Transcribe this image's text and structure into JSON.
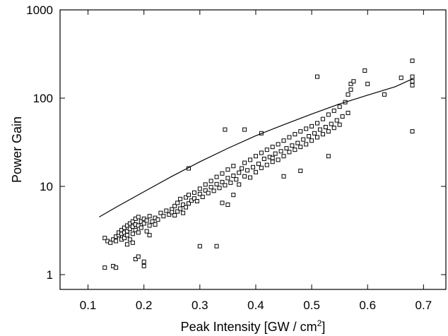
{
  "chart_data": {
    "type": "scatter",
    "title": "",
    "xlabel": "Peak Intensity [GW / cm",
    "xlabel_sup": "2",
    "xlabel_end": "]",
    "ylabel": "Power Gain",
    "x_ticks": [
      "0.1",
      "0.2",
      "0.3",
      "0.4",
      "0.5",
      "0.6",
      "0.7"
    ],
    "y_ticks": [
      "1",
      "10",
      "100",
      "1000"
    ],
    "xlim": [
      0.05,
      0.74
    ],
    "ylim": [
      0.68,
      1000
    ],
    "y_scale": "log",
    "grid": false,
    "legend": "none",
    "series": [
      {
        "type": "scatter",
        "marker": "open-square",
        "points": [
          [
            0.13,
            2.6
          ],
          [
            0.135,
            2.4
          ],
          [
            0.14,
            2.3
          ],
          [
            0.145,
            2.5
          ],
          [
            0.15,
            2.7
          ],
          [
            0.15,
            2.4
          ],
          [
            0.155,
            2.8
          ],
          [
            0.155,
            3.0
          ],
          [
            0.16,
            2.5
          ],
          [
            0.16,
            2.9
          ],
          [
            0.16,
            3.2
          ],
          [
            0.165,
            2.6
          ],
          [
            0.165,
            3.0
          ],
          [
            0.165,
            3.4
          ],
          [
            0.17,
            2.2
          ],
          [
            0.17,
            2.8
          ],
          [
            0.17,
            3.1
          ],
          [
            0.17,
            3.6
          ],
          [
            0.175,
            2.5
          ],
          [
            0.175,
            3.3
          ],
          [
            0.175,
            3.8
          ],
          [
            0.18,
            2.9
          ],
          [
            0.18,
            3.5
          ],
          [
            0.18,
            4.0
          ],
          [
            0.185,
            3.2
          ],
          [
            0.185,
            3.7
          ],
          [
            0.185,
            4.3
          ],
          [
            0.19,
            3.0
          ],
          [
            0.19,
            3.6
          ],
          [
            0.19,
            4.5
          ],
          [
            0.195,
            3.4
          ],
          [
            0.195,
            4.0
          ],
          [
            0.2,
            3.8
          ],
          [
            0.2,
            4.3
          ],
          [
            0.205,
            3.1
          ],
          [
            0.205,
            4.1
          ],
          [
            0.21,
            3.6
          ],
          [
            0.21,
            4.6
          ],
          [
            0.215,
            4.0
          ],
          [
            0.22,
            3.7
          ],
          [
            0.22,
            4.4
          ],
          [
            0.225,
            4.2
          ],
          [
            0.23,
            5.0
          ],
          [
            0.235,
            4.6
          ],
          [
            0.24,
            5.3
          ],
          [
            0.245,
            4.8
          ],
          [
            0.25,
            5.5
          ],
          [
            0.25,
            5.1
          ],
          [
            0.255,
            4.7
          ],
          [
            0.255,
            6.0
          ],
          [
            0.26,
            5.2
          ],
          [
            0.26,
            6.5
          ],
          [
            0.265,
            5.6
          ],
          [
            0.265,
            7.2
          ],
          [
            0.27,
            5.0
          ],
          [
            0.27,
            6.2
          ],
          [
            0.275,
            5.8
          ],
          [
            0.275,
            7.5
          ],
          [
            0.28,
            6.4
          ],
          [
            0.28,
            8.0
          ],
          [
            0.285,
            6.9
          ],
          [
            0.29,
            7.3
          ],
          [
            0.29,
            8.5
          ],
          [
            0.295,
            6.8
          ],
          [
            0.3,
            8.2
          ],
          [
            0.3,
            9.4
          ],
          [
            0.305,
            7.6
          ],
          [
            0.31,
            9.0
          ],
          [
            0.31,
            10.5
          ],
          [
            0.315,
            8.4
          ],
          [
            0.32,
            9.8
          ],
          [
            0.32,
            11.5
          ],
          [
            0.325,
            8.9
          ],
          [
            0.33,
            10.6
          ],
          [
            0.33,
            12.8
          ],
          [
            0.335,
            9.6
          ],
          [
            0.34,
            11.2
          ],
          [
            0.34,
            14.0
          ],
          [
            0.345,
            10.3
          ],
          [
            0.35,
            12.4
          ],
          [
            0.35,
            15.5
          ],
          [
            0.355,
            11.0
          ],
          [
            0.36,
            13.2
          ],
          [
            0.36,
            17.0
          ],
          [
            0.365,
            12.0
          ],
          [
            0.37,
            14.3
          ],
          [
            0.37,
            10.5
          ],
          [
            0.375,
            16.0
          ],
          [
            0.38,
            13.0
          ],
          [
            0.38,
            18.5
          ],
          [
            0.385,
            15.2
          ],
          [
            0.39,
            12.6
          ],
          [
            0.39,
            20.0
          ],
          [
            0.395,
            16.5
          ],
          [
            0.4,
            14.5
          ],
          [
            0.4,
            22.0
          ],
          [
            0.405,
            18.0
          ],
          [
            0.41,
            16.2
          ],
          [
            0.41,
            24.0
          ],
          [
            0.415,
            20.5
          ],
          [
            0.42,
            17.5
          ],
          [
            0.42,
            26.0
          ],
          [
            0.425,
            21.5
          ],
          [
            0.43,
            19.0
          ],
          [
            0.43,
            28.0
          ],
          [
            0.435,
            23.5
          ],
          [
            0.44,
            20.0
          ],
          [
            0.44,
            30.0
          ],
          [
            0.445,
            25.0
          ],
          [
            0.45,
            22.0
          ],
          [
            0.45,
            33.0
          ],
          [
            0.455,
            27.0
          ],
          [
            0.46,
            24.5
          ],
          [
            0.46,
            36.0
          ],
          [
            0.465,
            29.0
          ],
          [
            0.47,
            26.0
          ],
          [
            0.47,
            39.0
          ],
          [
            0.475,
            31.0
          ],
          [
            0.48,
            28.0
          ],
          [
            0.48,
            42.0
          ],
          [
            0.485,
            34.0
          ],
          [
            0.49,
            30.0
          ],
          [
            0.49,
            45.0
          ],
          [
            0.495,
            37.0
          ],
          [
            0.5,
            33.0
          ],
          [
            0.5,
            48.0
          ],
          [
            0.505,
            40.0
          ],
          [
            0.51,
            36.0
          ],
          [
            0.51,
            52.0
          ],
          [
            0.515,
            44.0
          ],
          [
            0.52,
            39.0
          ],
          [
            0.52,
            58.0
          ],
          [
            0.525,
            47.0
          ],
          [
            0.53,
            42.0
          ],
          [
            0.53,
            65.0
          ],
          [
            0.535,
            51.0
          ],
          [
            0.54,
            46.0
          ],
          [
            0.54,
            72.0
          ],
          [
            0.545,
            56.0
          ],
          [
            0.55,
            50.0
          ],
          [
            0.55,
            80.0
          ],
          [
            0.555,
            62.0
          ],
          [
            0.56,
            90.0
          ],
          [
            0.565,
            110.0
          ],
          [
            0.565,
            68.0
          ],
          [
            0.57,
            125.0
          ],
          [
            0.57,
            145.0
          ],
          [
            0.575,
            155.0
          ],
          [
            0.13,
            1.2
          ],
          [
            0.145,
            1.25
          ],
          [
            0.15,
            1.2
          ],
          [
            0.185,
            1.5
          ],
          [
            0.19,
            1.6
          ],
          [
            0.2,
            1.25
          ],
          [
            0.2,
            1.4
          ],
          [
            0.18,
            2.3
          ],
          [
            0.21,
            2.8
          ],
          [
            0.3,
            2.1
          ],
          [
            0.33,
            2.1
          ],
          [
            0.28,
            16.0
          ],
          [
            0.34,
            6.5
          ],
          [
            0.35,
            6.2
          ],
          [
            0.36,
            8.0
          ],
          [
            0.345,
            44.0
          ],
          [
            0.38,
            44.0
          ],
          [
            0.41,
            40.0
          ],
          [
            0.43,
            21.0
          ],
          [
            0.45,
            13.0
          ],
          [
            0.48,
            15.0
          ],
          [
            0.53,
            22.0
          ],
          [
            0.51,
            175.0
          ],
          [
            0.595,
            205.0
          ],
          [
            0.6,
            145.0
          ],
          [
            0.63,
            110.0
          ],
          [
            0.66,
            170.0
          ],
          [
            0.68,
            265.0
          ],
          [
            0.68,
            175.0
          ],
          [
            0.68,
            155.0
          ],
          [
            0.68,
            140.0
          ],
          [
            0.68,
            42.0
          ]
        ]
      },
      {
        "type": "line",
        "points": [
          [
            0.12,
            4.5
          ],
          [
            0.15,
            5.8
          ],
          [
            0.2,
            8.7
          ],
          [
            0.25,
            13.0
          ],
          [
            0.3,
            19.0
          ],
          [
            0.35,
            27.0
          ],
          [
            0.4,
            37.5
          ],
          [
            0.45,
            50.0
          ],
          [
            0.5,
            66.0
          ],
          [
            0.55,
            86.0
          ],
          [
            0.6,
            108.0
          ],
          [
            0.65,
            135.0
          ],
          [
            0.68,
            165.0
          ]
        ]
      }
    ]
  }
}
